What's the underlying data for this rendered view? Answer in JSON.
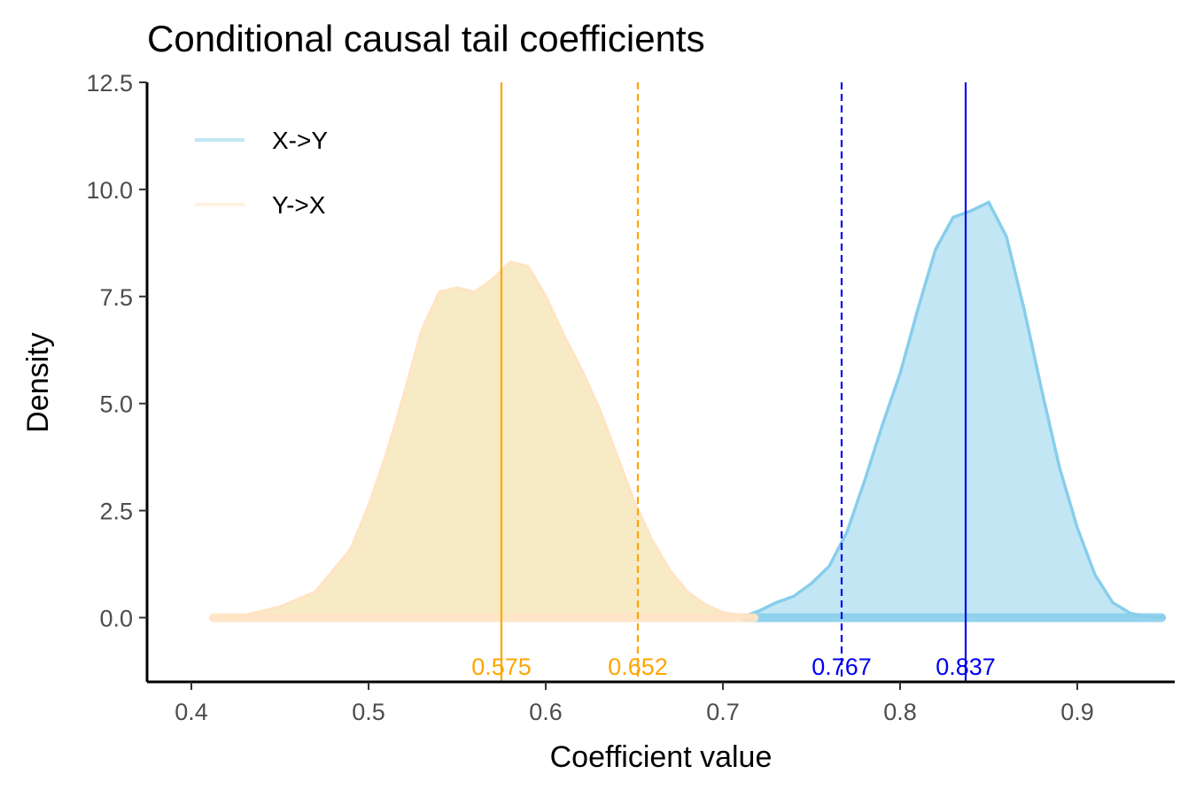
{
  "chart_data": {
    "type": "area",
    "title": "Conditional causal tail coefficients",
    "xlabel": "Coefficient value",
    "ylabel": "Density",
    "xlim": [
      0.375,
      0.955
    ],
    "ylim": [
      -1.5,
      12.5
    ],
    "xticks": [
      0.4,
      0.5,
      0.6,
      0.7,
      0.8,
      0.9
    ],
    "xtick_labels": [
      "0.4",
      "0.5",
      "0.6",
      "0.7",
      "0.8",
      "0.9"
    ],
    "yticks": [
      0,
      2.5,
      5,
      7.5,
      10,
      12.5
    ],
    "ytick_labels": [
      "0.0",
      "2.5",
      "5.0",
      "7.5",
      "10.0",
      "12.5"
    ],
    "legend_position": "top-left",
    "series": [
      {
        "name": "X->Y",
        "fill": "#87ceeb",
        "line": "#87ceeb",
        "points": [
          [
            0.71,
            0.0
          ],
          [
            0.72,
            0.15
          ],
          [
            0.73,
            0.35
          ],
          [
            0.74,
            0.5
          ],
          [
            0.75,
            0.8
          ],
          [
            0.76,
            1.2
          ],
          [
            0.77,
            2.0
          ],
          [
            0.78,
            3.2
          ],
          [
            0.79,
            4.5
          ],
          [
            0.8,
            5.7
          ],
          [
            0.81,
            7.2
          ],
          [
            0.82,
            8.6
          ],
          [
            0.83,
            9.35
          ],
          [
            0.84,
            9.5
          ],
          [
            0.85,
            9.7
          ],
          [
            0.86,
            8.9
          ],
          [
            0.87,
            7.2
          ],
          [
            0.88,
            5.3
          ],
          [
            0.89,
            3.5
          ],
          [
            0.9,
            2.1
          ],
          [
            0.91,
            1.0
          ],
          [
            0.92,
            0.35
          ],
          [
            0.93,
            0.1
          ],
          [
            0.94,
            0.02
          ],
          [
            0.95,
            0.0
          ]
        ],
        "threshold_value": 0.767,
        "threshold_label": "0.767",
        "mean_value": 0.837,
        "mean_label": "0.837",
        "marker_color": "#0000ee"
      },
      {
        "name": "Y->X",
        "fill": "#f5e6b8",
        "line": "#ffe4c4",
        "points": [
          [
            0.41,
            0.0
          ],
          [
            0.43,
            0.05
          ],
          [
            0.45,
            0.25
          ],
          [
            0.47,
            0.6
          ],
          [
            0.49,
            1.6
          ],
          [
            0.5,
            2.6
          ],
          [
            0.51,
            3.8
          ],
          [
            0.52,
            5.2
          ],
          [
            0.53,
            6.7
          ],
          [
            0.54,
            7.6
          ],
          [
            0.55,
            7.7
          ],
          [
            0.56,
            7.6
          ],
          [
            0.57,
            7.9
          ],
          [
            0.58,
            8.3
          ],
          [
            0.59,
            8.2
          ],
          [
            0.6,
            7.5
          ],
          [
            0.61,
            6.6
          ],
          [
            0.62,
            5.8
          ],
          [
            0.63,
            4.9
          ],
          [
            0.64,
            3.8
          ],
          [
            0.65,
            2.7
          ],
          [
            0.66,
            1.8
          ],
          [
            0.67,
            1.1
          ],
          [
            0.68,
            0.6
          ],
          [
            0.69,
            0.3
          ],
          [
            0.7,
            0.12
          ],
          [
            0.71,
            0.05
          ],
          [
            0.72,
            0.0
          ]
        ],
        "threshold_value": 0.652,
        "threshold_label": "0.652",
        "mean_value": 0.575,
        "mean_label": "0.575",
        "marker_color": "#ffa500"
      }
    ]
  }
}
